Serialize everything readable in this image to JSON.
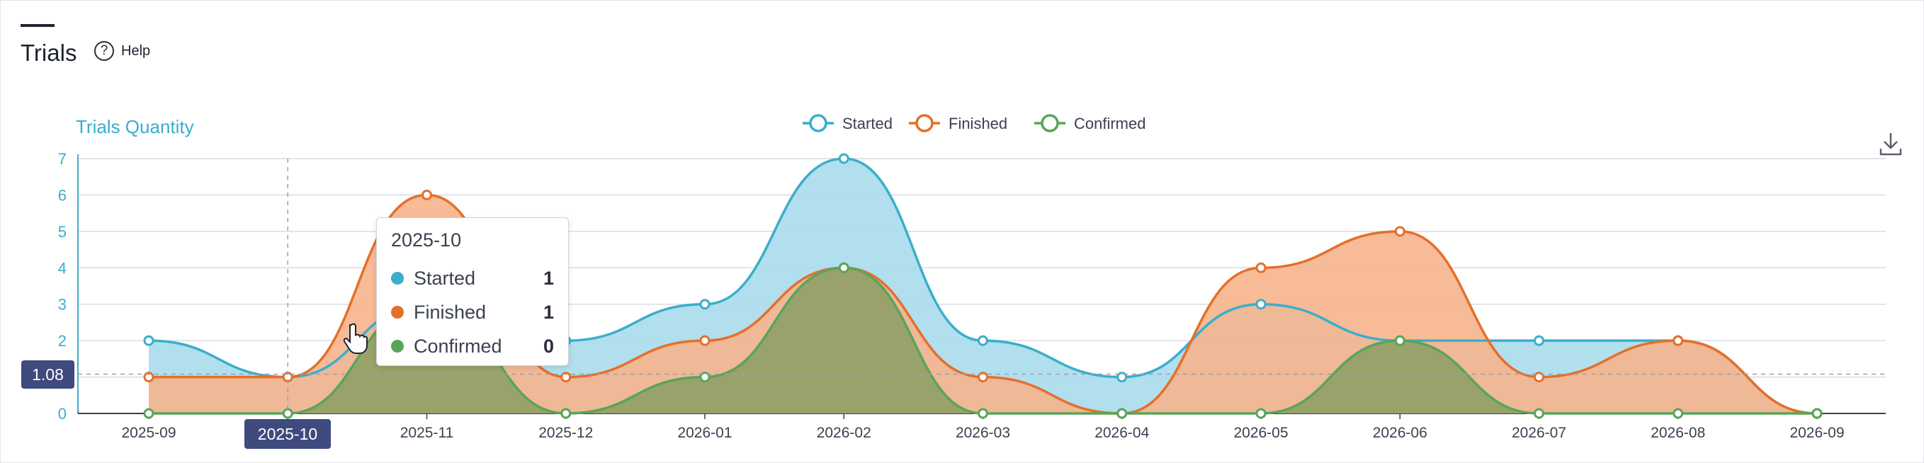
{
  "header": {
    "title": "Trials",
    "help_label": "Help",
    "help_glyph": "?"
  },
  "colors": {
    "started": "#3aaecb",
    "started_fill": "#a8dcec",
    "finished": "#e56f2a",
    "finished_fill": "#f6b48c",
    "confirmed": "#58a55a",
    "confirmed_fill": "#8a9e63",
    "axis": "#3aaecb",
    "grid": "#d9dce3",
    "highlight": "#3f4a7e"
  },
  "chart_data": {
    "type": "area",
    "ylabel": "Trials Quantity",
    "x": [
      "2025-09",
      "2025-10",
      "2025-11",
      "2025-12",
      "2026-01",
      "2026-02",
      "2026-03",
      "2026-04",
      "2026-05",
      "2026-06",
      "2026-07",
      "2026-08",
      "2026-09"
    ],
    "ylim": [
      0,
      7
    ],
    "yticks": [
      "0",
      "1",
      "2",
      "3",
      "4",
      "5",
      "6",
      "7"
    ],
    "series": [
      {
        "name": "Started",
        "key": "started",
        "values": [
          2,
          1,
          3,
          2,
          3,
          7,
          2,
          1,
          3,
          2,
          2,
          2,
          0
        ]
      },
      {
        "name": "Finished",
        "key": "finished",
        "values": [
          1,
          1,
          6,
          1,
          2,
          4,
          1,
          0,
          4,
          5,
          1,
          2,
          0
        ]
      },
      {
        "name": "Confirmed",
        "key": "confirmed",
        "values": [
          0,
          0,
          3,
          0,
          1,
          4,
          0,
          0,
          0,
          2,
          0,
          0,
          0
        ]
      }
    ],
    "grid": true,
    "legend_position": "top-center",
    "hover": {
      "category": "2025-10",
      "y_readout": "1.08",
      "rows": [
        {
          "name": "Started",
          "value": "1",
          "key": "started"
        },
        {
          "name": "Finished",
          "value": "1",
          "key": "finished"
        },
        {
          "name": "Confirmed",
          "value": "0",
          "key": "confirmed"
        }
      ]
    },
    "download_icon": "download-icon"
  }
}
